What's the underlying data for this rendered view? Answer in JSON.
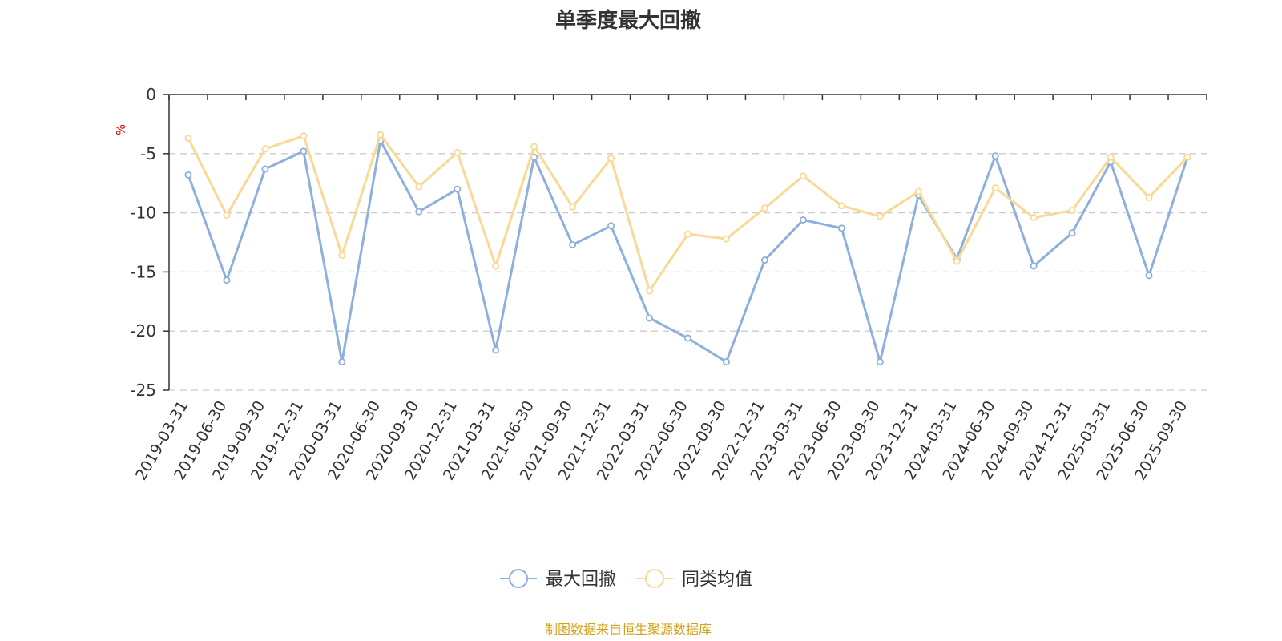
{
  "chart_data": {
    "type": "line",
    "title": "单季度最大回撤",
    "ylabel": "%",
    "ylim": [
      -25,
      0
    ],
    "yticks": [
      0,
      -5,
      -10,
      -15,
      -20,
      -25
    ],
    "grid": true,
    "legend_position": "bottom",
    "categories": [
      "2019-03-31",
      "2019-06-30",
      "2019-09-30",
      "2019-12-31",
      "2020-03-31",
      "2020-06-30",
      "2020-09-30",
      "2020-12-31",
      "2021-03-31",
      "2021-06-30",
      "2021-09-30",
      "2021-12-31",
      "2022-03-31",
      "2022-06-30",
      "2022-09-30",
      "2022-12-31",
      "2023-03-31",
      "2023-06-30",
      "2023-09-30",
      "2023-12-31",
      "2024-03-31",
      "2024-06-30",
      "2024-09-30",
      "2024-12-31",
      "2025-03-31",
      "2025-06-30",
      "2025-09-30"
    ],
    "series": [
      {
        "name": "最大回撤",
        "color": "#8eb0dc",
        "values": [
          -6.8,
          -15.7,
          -6.3,
          -4.8,
          -22.6,
          -3.9,
          -9.9,
          -8.0,
          -21.6,
          -5.3,
          -12.7,
          -11.1,
          -18.9,
          -20.6,
          -22.6,
          -14.0,
          -10.6,
          -11.3,
          -22.6,
          -8.5,
          -13.9,
          -5.2,
          -14.5,
          -11.7,
          -5.7,
          -15.3,
          -5.3
        ]
      },
      {
        "name": "同类均值",
        "color": "#f9d995",
        "values": [
          -3.7,
          -10.2,
          -4.6,
          -3.5,
          -13.6,
          -3.4,
          -7.8,
          -4.9,
          -14.5,
          -4.4,
          -9.5,
          -5.4,
          -16.6,
          -11.8,
          -12.2,
          -9.6,
          -6.9,
          -9.4,
          -10.3,
          -8.2,
          -14.1,
          -7.9,
          -10.4,
          -9.8,
          -5.3,
          -8.7,
          -5.3
        ]
      }
    ]
  },
  "footer": {
    "source_text": "制图数据来自恒生聚源数据库",
    "source_color": "#d4a017"
  },
  "colors": {
    "axis": "#333333",
    "grid": "#cccccc",
    "unit_label": "#e60000"
  }
}
